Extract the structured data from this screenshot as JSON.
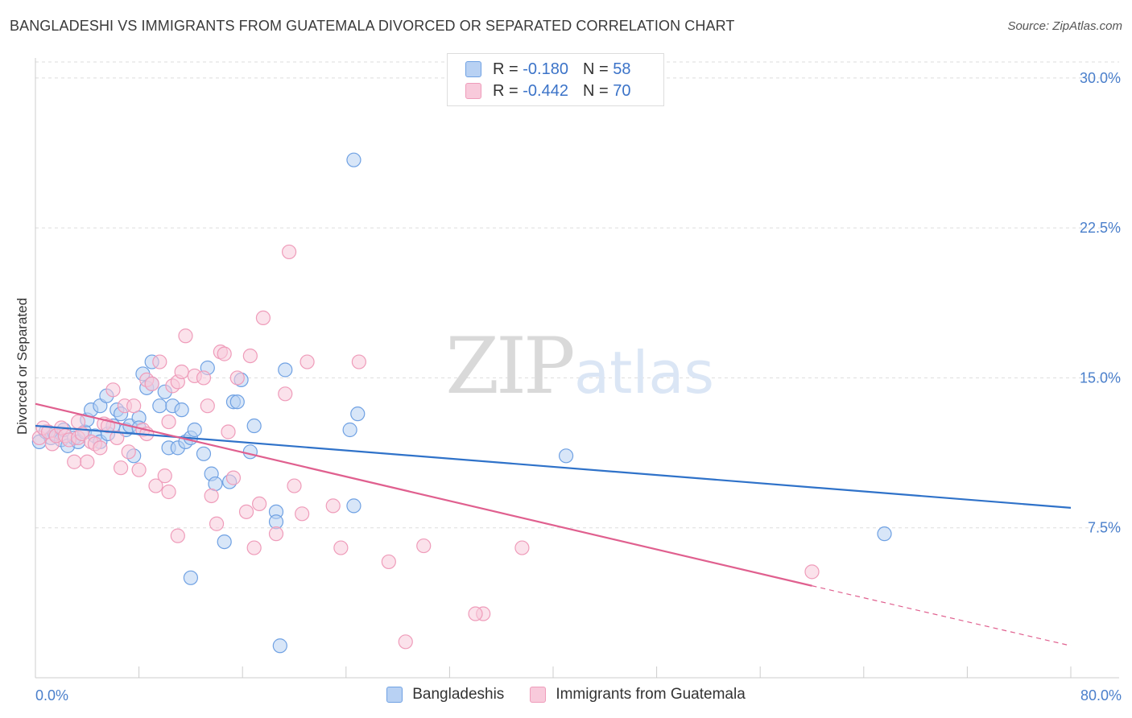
{
  "header": {
    "title": "BANGLADESHI VS IMMIGRANTS FROM GUATEMALA DIVORCED OR SEPARATED CORRELATION CHART",
    "source": "Source: ZipAtlas.com"
  },
  "watermark": {
    "zip": "ZIP",
    "atlas": "atlas"
  },
  "legend": {
    "rows": [
      {
        "r_label": "R =",
        "r_value": "-0.180",
        "n_label": "N =",
        "n_value": "58"
      },
      {
        "r_label": "R =",
        "r_value": "-0.442",
        "n_label": "N =",
        "n_value": "70"
      }
    ]
  },
  "chart_data": {
    "type": "scatter",
    "title": "BANGLADESHI VS IMMIGRANTS FROM GUATEMALA DIVORCED OR SEPARATED CORRELATION CHART",
    "xlabel": "",
    "ylabel": "Divorced or Separated",
    "xlim": [
      0,
      80
    ],
    "ylim": [
      0,
      31
    ],
    "x_tick_labels": [
      "0.0%",
      "80.0%"
    ],
    "y_ticks": [
      7.5,
      15.0,
      22.5,
      30.0
    ],
    "y_tick_labels": [
      "7.5%",
      "15.0%",
      "22.5%",
      "30.0%"
    ],
    "grid": true,
    "legend_position": "top-center",
    "series": [
      {
        "name": "Bangladeshis",
        "color": "#6fa1e3",
        "fill": "#b8d1f3",
        "trend_color": "#2f72c9",
        "trend": {
          "x": [
            0,
            80
          ],
          "y": [
            12.6,
            8.5
          ]
        },
        "points": [
          [
            0.3,
            11.8
          ],
          [
            0.8,
            12.3
          ],
          [
            1.2,
            12.0
          ],
          [
            1.5,
            12.2
          ],
          [
            2.0,
            11.9
          ],
          [
            2.2,
            12.4
          ],
          [
            2.5,
            11.6
          ],
          [
            3.0,
            12.0
          ],
          [
            3.3,
            11.8
          ],
          [
            3.8,
            12.3
          ],
          [
            4.0,
            12.9
          ],
          [
            4.3,
            13.4
          ],
          [
            4.6,
            12.1
          ],
          [
            5.0,
            11.8
          ],
          [
            5.0,
            13.6
          ],
          [
            5.5,
            14.1
          ],
          [
            5.6,
            12.2
          ],
          [
            6.0,
            12.6
          ],
          [
            6.3,
            13.4
          ],
          [
            6.6,
            13.2
          ],
          [
            7.0,
            12.4
          ],
          [
            7.3,
            12.6
          ],
          [
            7.6,
            11.1
          ],
          [
            8.0,
            13.0
          ],
          [
            8.0,
            12.5
          ],
          [
            8.3,
            15.2
          ],
          [
            8.6,
            14.5
          ],
          [
            9.0,
            14.7
          ],
          [
            9.0,
            15.8
          ],
          [
            9.6,
            13.6
          ],
          [
            10.0,
            14.3
          ],
          [
            10.3,
            11.5
          ],
          [
            10.6,
            13.6
          ],
          [
            11.0,
            11.5
          ],
          [
            11.3,
            13.4
          ],
          [
            11.6,
            11.8
          ],
          [
            12.0,
            12.0
          ],
          [
            12.0,
            5.0
          ],
          [
            12.3,
            12.4
          ],
          [
            13.0,
            11.2
          ],
          [
            13.3,
            15.5
          ],
          [
            13.6,
            10.2
          ],
          [
            13.9,
            9.7
          ],
          [
            14.6,
            6.8
          ],
          [
            15.0,
            9.8
          ],
          [
            15.3,
            13.8
          ],
          [
            15.6,
            13.8
          ],
          [
            15.9,
            14.9
          ],
          [
            16.6,
            11.3
          ],
          [
            16.9,
            12.6
          ],
          [
            18.6,
            8.3
          ],
          [
            18.6,
            7.8
          ],
          [
            18.9,
            1.6
          ],
          [
            19.3,
            15.4
          ],
          [
            24.3,
            12.4
          ],
          [
            24.6,
            8.6
          ],
          [
            24.9,
            13.2
          ],
          [
            24.6,
            25.9
          ],
          [
            41.0,
            11.1
          ],
          [
            65.6,
            7.2
          ]
        ]
      },
      {
        "name": "Immigrants from Guatemala",
        "color": "#ef9cba",
        "fill": "#f8cadb",
        "trend_color": "#e0608f",
        "trend": {
          "x": [
            0,
            60
          ],
          "y": [
            13.7,
            4.6
          ]
        },
        "trend_dashed": {
          "x": [
            60,
            80
          ],
          "y": [
            4.6,
            1.6
          ]
        },
        "points": [
          [
            0.3,
            12.0
          ],
          [
            0.6,
            12.5
          ],
          [
            1.0,
            12.3
          ],
          [
            1.3,
            11.7
          ],
          [
            1.6,
            12.1
          ],
          [
            2.0,
            12.5
          ],
          [
            2.3,
            12.1
          ],
          [
            2.6,
            11.9
          ],
          [
            3.0,
            10.8
          ],
          [
            3.3,
            12.0
          ],
          [
            3.3,
            12.8
          ],
          [
            3.6,
            12.2
          ],
          [
            4.0,
            10.8
          ],
          [
            4.3,
            11.8
          ],
          [
            4.6,
            11.7
          ],
          [
            5.0,
            11.5
          ],
          [
            5.3,
            12.7
          ],
          [
            5.6,
            12.6
          ],
          [
            6.0,
            14.4
          ],
          [
            6.3,
            12.0
          ],
          [
            6.6,
            10.5
          ],
          [
            6.9,
            13.6
          ],
          [
            7.2,
            11.3
          ],
          [
            7.6,
            13.6
          ],
          [
            8.0,
            10.4
          ],
          [
            8.3,
            12.4
          ],
          [
            8.6,
            12.2
          ],
          [
            8.6,
            14.9
          ],
          [
            9.0,
            14.7
          ],
          [
            9.3,
            9.6
          ],
          [
            9.6,
            15.8
          ],
          [
            10.0,
            10.1
          ],
          [
            10.3,
            12.8
          ],
          [
            10.3,
            9.3
          ],
          [
            10.6,
            14.6
          ],
          [
            11.0,
            14.8
          ],
          [
            11.0,
            7.1
          ],
          [
            11.3,
            15.3
          ],
          [
            11.6,
            17.1
          ],
          [
            12.3,
            15.1
          ],
          [
            13.0,
            15.0
          ],
          [
            13.3,
            13.6
          ],
          [
            13.6,
            9.1
          ],
          [
            14.0,
            7.7
          ],
          [
            14.3,
            16.3
          ],
          [
            14.6,
            16.2
          ],
          [
            14.9,
            12.3
          ],
          [
            15.3,
            10.0
          ],
          [
            15.6,
            15.0
          ],
          [
            16.3,
            8.3
          ],
          [
            16.6,
            16.1
          ],
          [
            16.9,
            6.5
          ],
          [
            17.3,
            8.7
          ],
          [
            17.6,
            18.0
          ],
          [
            18.6,
            7.2
          ],
          [
            19.3,
            14.2
          ],
          [
            19.6,
            21.3
          ],
          [
            20.0,
            9.6
          ],
          [
            20.6,
            8.2
          ],
          [
            21.0,
            15.8
          ],
          [
            23.0,
            8.6
          ],
          [
            23.6,
            6.5
          ],
          [
            25.0,
            15.8
          ],
          [
            27.3,
            5.8
          ],
          [
            28.6,
            1.8
          ],
          [
            30.0,
            6.6
          ],
          [
            34.6,
            3.2
          ],
          [
            37.6,
            6.5
          ],
          [
            60.0,
            5.3
          ],
          [
            34.0,
            3.2
          ]
        ]
      }
    ]
  }
}
